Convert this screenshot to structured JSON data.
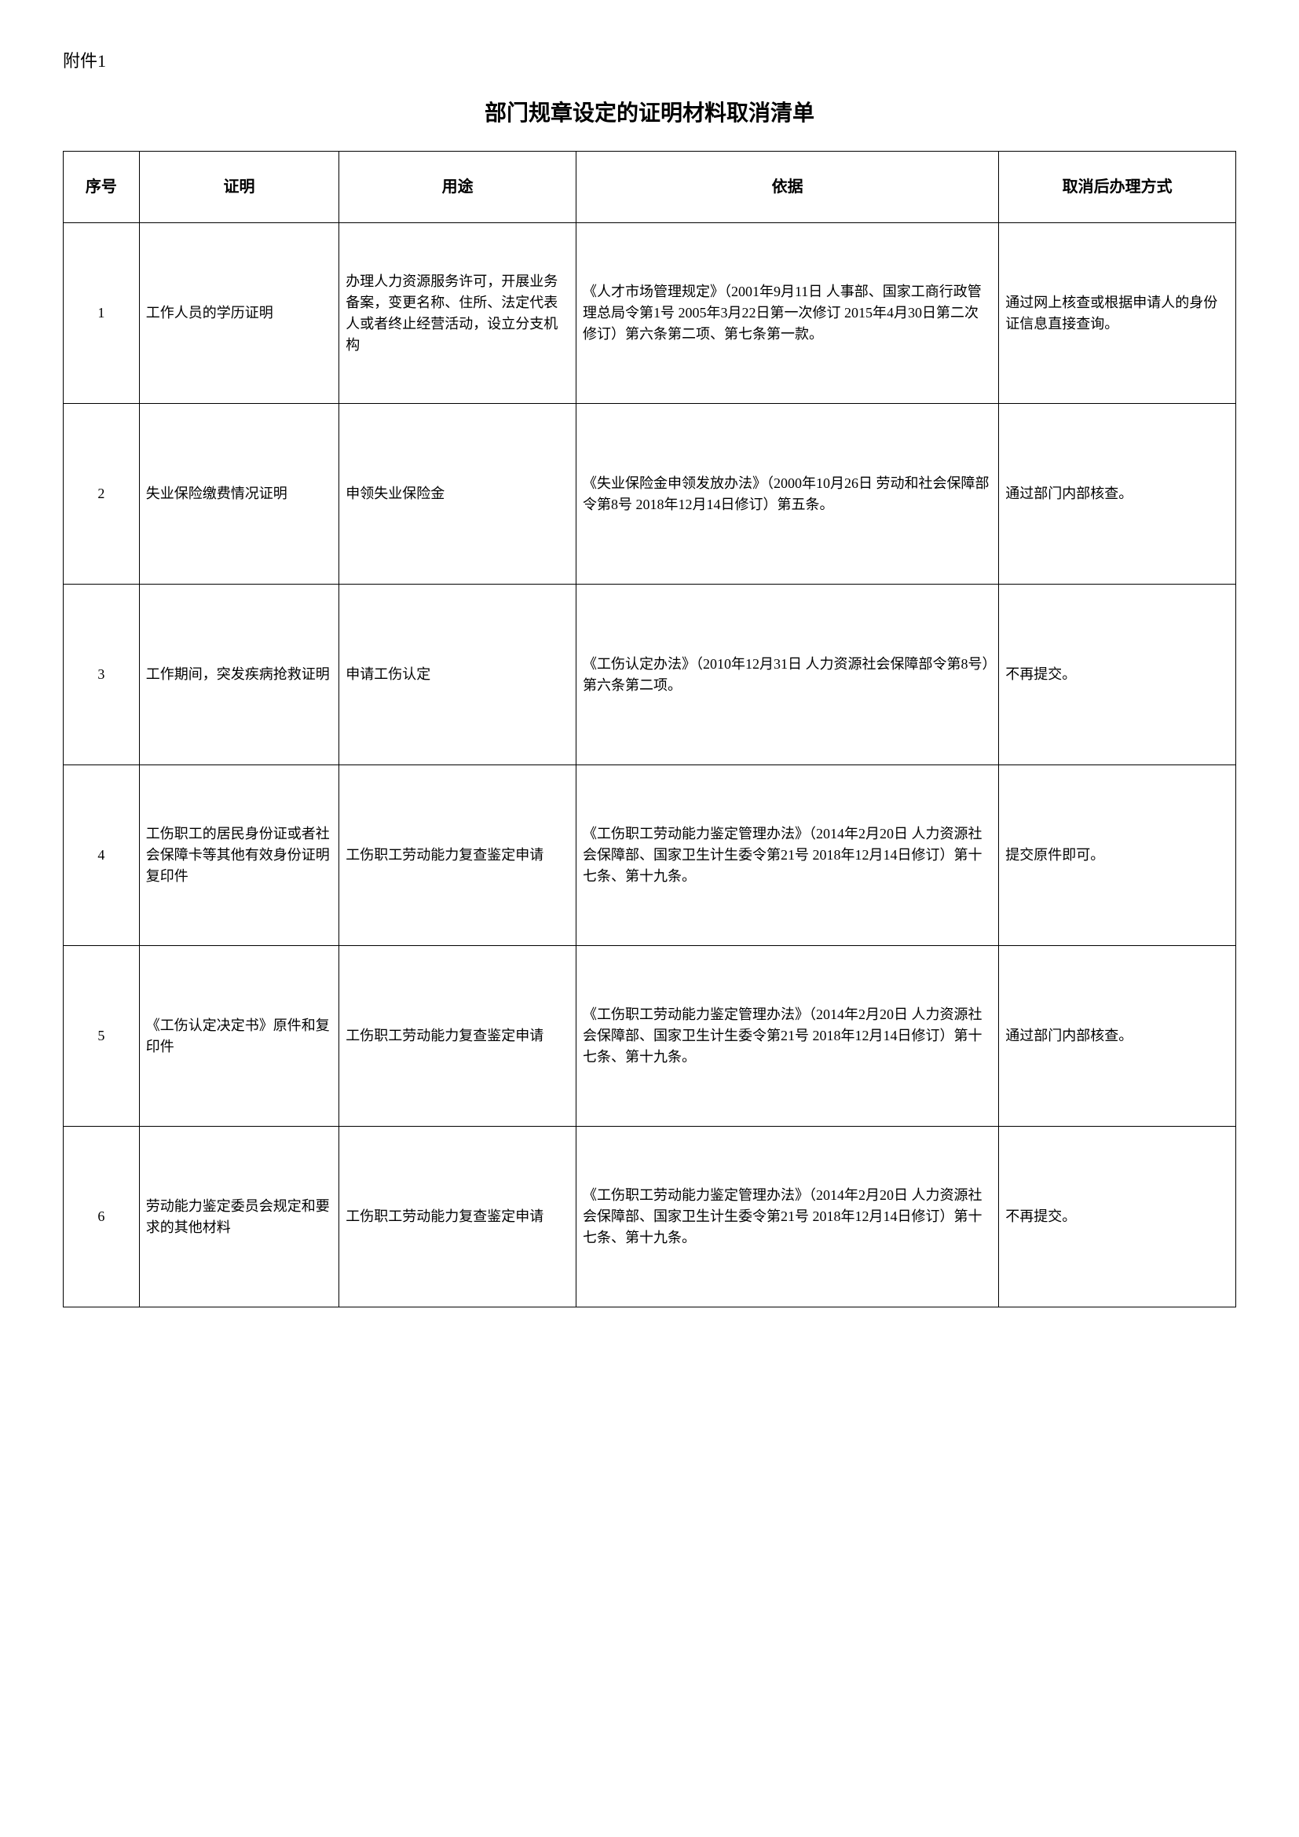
{
  "attachment_label": "附件1",
  "title": "部门规章设定的证明材料取消清单",
  "table": {
    "headers": {
      "seq": "序号",
      "cert": "证明",
      "purpose": "用途",
      "basis": "依据",
      "method": "取消后办理方式"
    },
    "rows": [
      {
        "seq": "1",
        "cert": "工作人员的学历证明",
        "purpose": "办理人力资源服务许可，开展业务备案，变更名称、住所、法定代表人或者终止经营活动，设立分支机构",
        "basis": "《人才市场管理规定》（2001年9月11日 人事部、国家工商行政管理总局令第1号 2005年3月22日第一次修订 2015年4月30日第二次修订）第六条第二项、第七条第一款。",
        "method": "通过网上核查或根据申请人的身份证信息直接查询。"
      },
      {
        "seq": "2",
        "cert": "失业保险缴费情况证明",
        "purpose": "申领失业保险金",
        "basis": "《失业保险金申领发放办法》（2000年10月26日 劳动和社会保障部令第8号 2018年12月14日修订）第五条。",
        "method": "通过部门内部核查。"
      },
      {
        "seq": "3",
        "cert": "工作期间，突发疾病抢救证明",
        "purpose": "申请工伤认定",
        "basis": "《工伤认定办法》（2010年12月31日 人力资源社会保障部令第8号）第六条第二项。",
        "method": "不再提交。"
      },
      {
        "seq": "4",
        "cert": "工伤职工的居民身份证或者社会保障卡等其他有效身份证明复印件",
        "purpose": "工伤职工劳动能力复查鉴定申请",
        "basis": "《工伤职工劳动能力鉴定管理办法》（2014年2月20日 人力资源社会保障部、国家卫生计生委令第21号 2018年12月14日修订）第十七条、第十九条。",
        "method": "提交原件即可。"
      },
      {
        "seq": "5",
        "cert": "《工伤认定决定书》原件和复印件",
        "purpose": "工伤职工劳动能力复查鉴定申请",
        "basis": "《工伤职工劳动能力鉴定管理办法》（2014年2月20日 人力资源社会保障部、国家卫生计生委令第21号 2018年12月14日修订）第十七条、第十九条。",
        "method": "通过部门内部核查。"
      },
      {
        "seq": "6",
        "cert": "劳动能力鉴定委员会规定和要求的其他材料",
        "purpose": "工伤职工劳动能力复查鉴定申请",
        "basis": "《工伤职工劳动能力鉴定管理办法》（2014年2月20日 人力资源社会保障部、国家卫生计生委令第21号 2018年12月14日修订）第十七条、第十九条。",
        "method": "不再提交。"
      }
    ]
  }
}
